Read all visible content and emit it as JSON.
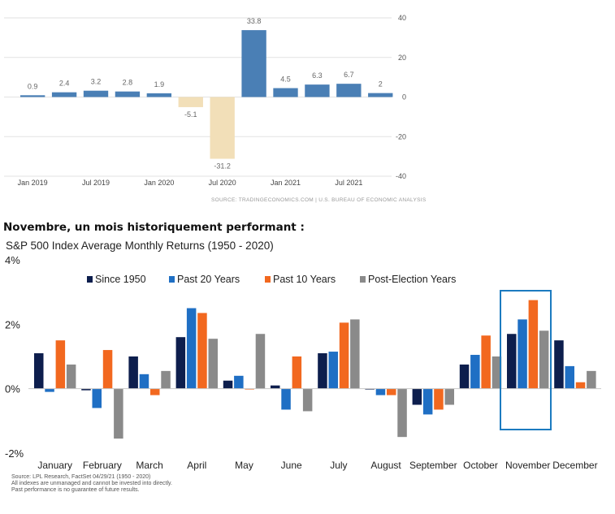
{
  "chart_data": [
    {
      "type": "bar",
      "categories": [
        "2019 Q1",
        "2019 Q2",
        "2019 Q3",
        "2019 Q4",
        "2020 Q1",
        "2020 Q2",
        "2020 Q3",
        "2020 Q4",
        "2021 Q1",
        "2021 Q2",
        "2021 Q3",
        "2021 Q4"
      ],
      "values": [
        0.9,
        2.4,
        3.2,
        2.8,
        1.9,
        -5.1,
        -31.2,
        33.8,
        4.5,
        6.3,
        6.7,
        2
      ],
      "x_tick_labels": [
        {
          "label": "Jan 2019",
          "index": 0
        },
        {
          "label": "Jul 2019",
          "index": 2
        },
        {
          "label": "Jan 2020",
          "index": 4
        },
        {
          "label": "Jul 2020",
          "index": 6
        },
        {
          "label": "Jan 2021",
          "index": 8
        },
        {
          "label": "Jul 2021",
          "index": 10
        }
      ],
      "ylim": [
        -40,
        40
      ],
      "yticks": [
        40,
        20,
        0,
        -20,
        -40
      ],
      "grid": true,
      "y_axis_side": "right",
      "colors": {
        "positive": "#4a7fb5",
        "negative": "#f2dfb8",
        "label": "#666666",
        "grid": "#e2e2e2"
      },
      "source": "SOURCE: TRADINGECONOMICS.COM | U.S. BUREAU OF ECONOMIC ANALYSIS"
    },
    {
      "type": "bar",
      "title": "S&P 500 Index Average Monthly Returns (1950 - 2020)",
      "categories": [
        "January",
        "February",
        "March",
        "April",
        "May",
        "June",
        "July",
        "August",
        "September",
        "October",
        "November",
        "December"
      ],
      "series": [
        {
          "name": "Since 1950",
          "color": "#0d1e4d",
          "values": [
            1.1,
            -0.05,
            1.0,
            1.6,
            0.25,
            0.1,
            1.1,
            0.0,
            -0.5,
            0.75,
            1.7,
            1.5
          ]
        },
        {
          "name": "Past 20 Years",
          "color": "#1f6fc4",
          "values": [
            -0.1,
            -0.6,
            0.45,
            2.5,
            0.4,
            -0.65,
            1.15,
            -0.2,
            -0.8,
            1.05,
            2.15,
            0.7
          ]
        },
        {
          "name": "Past 10 Years",
          "color": "#f2681f",
          "values": [
            1.5,
            1.2,
            -0.2,
            2.35,
            0.0,
            1.0,
            2.05,
            -0.2,
            -0.65,
            1.65,
            2.75,
            0.2
          ]
        },
        {
          "name": "Post-Election Years",
          "color": "#8a8a8a",
          "values": [
            0.75,
            -1.55,
            0.55,
            1.55,
            1.7,
            -0.7,
            2.15,
            -1.5,
            -0.5,
            1.0,
            1.8,
            0.55
          ]
        }
      ],
      "yticks": [
        "4%",
        "2%",
        "0%",
        "-2%"
      ],
      "ylim": [
        -2,
        4
      ],
      "legend_position": "top",
      "highlight_category": "November",
      "highlight_color": "#1c7bc0",
      "notes": [
        "Source: LPL Research, FactSet 04/29/21  (1950 - 2020)",
        "All indexes are unmanaged and cannot be invested into directly.",
        "Past performance is no guarantee of future results."
      ]
    }
  ],
  "heading": "Novembre, un mois historiquement performant :"
}
